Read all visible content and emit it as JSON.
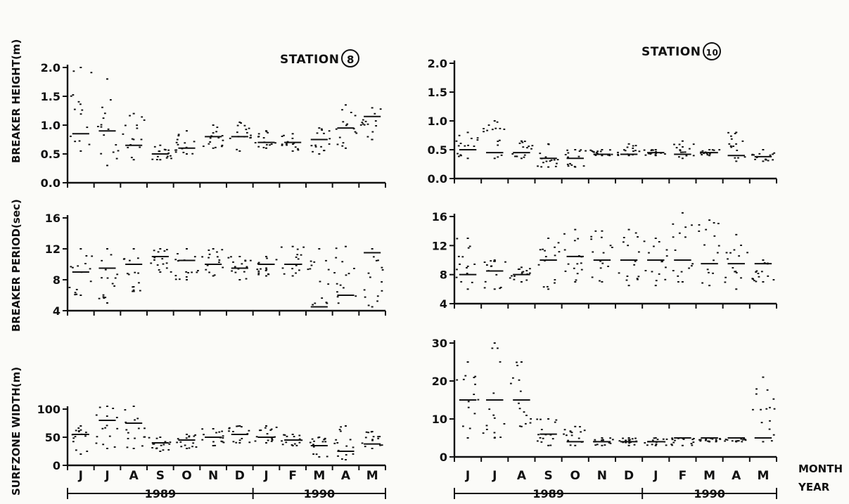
{
  "figure": {
    "station_left": {
      "label": "STATION",
      "number": "8"
    },
    "station_right": {
      "label": "STATION",
      "number": "10"
    },
    "row_labels": {
      "month": "MONTH",
      "year": "YEAR"
    },
    "ylabels": {
      "height": "BREAKER HEIGHT(m)",
      "period": "BREAKER PERIOD(sec)",
      "width": "SURFZONE WIDTH(m)"
    },
    "months": [
      "J",
      "J",
      "A",
      "S",
      "O",
      "N",
      "D",
      "J",
      "F",
      "M",
      "A",
      "M"
    ],
    "years": [
      "1989",
      "1990"
    ]
  },
  "chart_data": [
    {
      "type": "scatter",
      "id": "s8-height",
      "station": "8",
      "ylabel": "BREAKER HEIGHT(m)",
      "ylim": [
        0,
        2.0
      ],
      "yticks": [
        0.0,
        0.5,
        1.0,
        1.5,
        2.0
      ],
      "x": [
        "J",
        "J",
        "A",
        "S",
        "O",
        "N",
        "D",
        "J",
        "F",
        "M",
        "A",
        "M"
      ],
      "values": [
        0.85,
        0.9,
        0.65,
        0.5,
        0.6,
        0.8,
        0.8,
        0.7,
        0.7,
        0.75,
        0.95,
        1.15
      ],
      "min": [
        0.55,
        0.3,
        0.4,
        0.4,
        0.5,
        0.6,
        0.55,
        0.6,
        0.55,
        0.5,
        0.6,
        0.75
      ],
      "max": [
        2.0,
        1.8,
        1.2,
        0.65,
        0.9,
        1.0,
        1.05,
        0.9,
        0.85,
        0.95,
        1.35,
        1.3
      ]
    },
    {
      "type": "scatter",
      "id": "s8-period",
      "station": "8",
      "ylabel": "BREAKER PERIOD(sec)",
      "ylim": [
        4,
        16
      ],
      "yticks": [
        4,
        8,
        12,
        16
      ],
      "x": [
        "J",
        "J",
        "A",
        "S",
        "O",
        "N",
        "D",
        "J",
        "F",
        "M",
        "A",
        "M"
      ],
      "values": [
        9,
        9.5,
        10,
        11,
        10.5,
        10,
        9.5,
        10,
        10,
        4.5,
        6,
        11.5
      ],
      "min": [
        6,
        5,
        6.5,
        9,
        8,
        8.5,
        8,
        8.5,
        8.5,
        4,
        4,
        4.5
      ],
      "max": [
        12,
        12,
        12,
        12,
        12,
        12,
        11,
        11,
        12.3,
        12,
        12.3,
        12
      ]
    },
    {
      "type": "scatter",
      "id": "s8-width",
      "station": "8",
      "ylabel": "SURFZONE WIDTH(m)",
      "ylim": [
        0,
        100
      ],
      "yticks": [
        0,
        50,
        100
      ],
      "x": [
        "J",
        "J",
        "A",
        "S",
        "O",
        "N",
        "D",
        "J",
        "F",
        "M",
        "A",
        "M"
      ],
      "values": [
        55,
        80,
        75,
        40,
        45,
        50,
        55,
        50,
        45,
        35,
        25,
        38
      ],
      "min": [
        20,
        30,
        30,
        25,
        30,
        35,
        40,
        40,
        35,
        15,
        10,
        30
      ],
      "max": [
        70,
        105,
        105,
        50,
        55,
        65,
        70,
        70,
        55,
        50,
        70,
        60
      ]
    },
    {
      "type": "scatter",
      "id": "s10-height",
      "station": "10",
      "ylabel": "BREAKER HEIGHT(m)",
      "ylim": [
        0,
        2.0
      ],
      "yticks": [
        0.0,
        0.5,
        1.0,
        1.5,
        2.0
      ],
      "x": [
        "J",
        "J",
        "A",
        "S",
        "O",
        "N",
        "D",
        "J",
        "F",
        "M",
        "A",
        "M"
      ],
      "values": [
        0.5,
        0.45,
        0.45,
        0.35,
        0.35,
        0.42,
        0.42,
        0.45,
        0.42,
        0.45,
        0.4,
        0.38
      ],
      "min": [
        0.35,
        0.35,
        0.35,
        0.2,
        0.2,
        0.4,
        0.4,
        0.4,
        0.35,
        0.4,
        0.3,
        0.3
      ],
      "max": [
        0.8,
        1.0,
        0.65,
        0.6,
        0.5,
        0.5,
        0.6,
        0.5,
        0.65,
        0.5,
        0.8,
        0.5
      ]
    },
    {
      "type": "scatter",
      "id": "s10-period",
      "station": "10",
      "ylabel": "BREAKER PERIOD(sec)",
      "ylim": [
        4,
        16
      ],
      "yticks": [
        4,
        8,
        12,
        16
      ],
      "x": [
        "J",
        "J",
        "A",
        "S",
        "O",
        "N",
        "D",
        "J",
        "F",
        "M",
        "A",
        "M"
      ],
      "values": [
        8,
        8.5,
        8,
        10,
        10.5,
        10,
        10,
        10,
        10,
        9.5,
        9.5,
        9.5
      ],
      "min": [
        6,
        6,
        7,
        6,
        7,
        7,
        6.5,
        6.5,
        7,
        6.5,
        6,
        7
      ],
      "max": [
        13,
        10,
        9,
        13,
        14.2,
        14,
        14.2,
        13,
        16.5,
        15.5,
        13.5,
        10
      ]
    },
    {
      "type": "scatter",
      "id": "s10-width",
      "station": "10",
      "ylabel": "",
      "ylim": [
        0,
        30
      ],
      "yticks": [
        0,
        10,
        20,
        30
      ],
      "x": [
        "J",
        "J",
        "A",
        "S",
        "O",
        "N",
        "D",
        "J",
        "F",
        "M",
        "A",
        "M"
      ],
      "values": [
        15,
        15,
        15,
        6,
        4,
        4,
        4,
        4,
        5,
        5,
        5,
        5
      ],
      "min": [
        5,
        5,
        8,
        3,
        3,
        3,
        3,
        3,
        3,
        4,
        4,
        4
      ],
      "max": [
        25,
        30,
        25,
        10,
        8,
        5,
        5,
        5,
        5,
        5,
        5,
        21
      ]
    }
  ]
}
